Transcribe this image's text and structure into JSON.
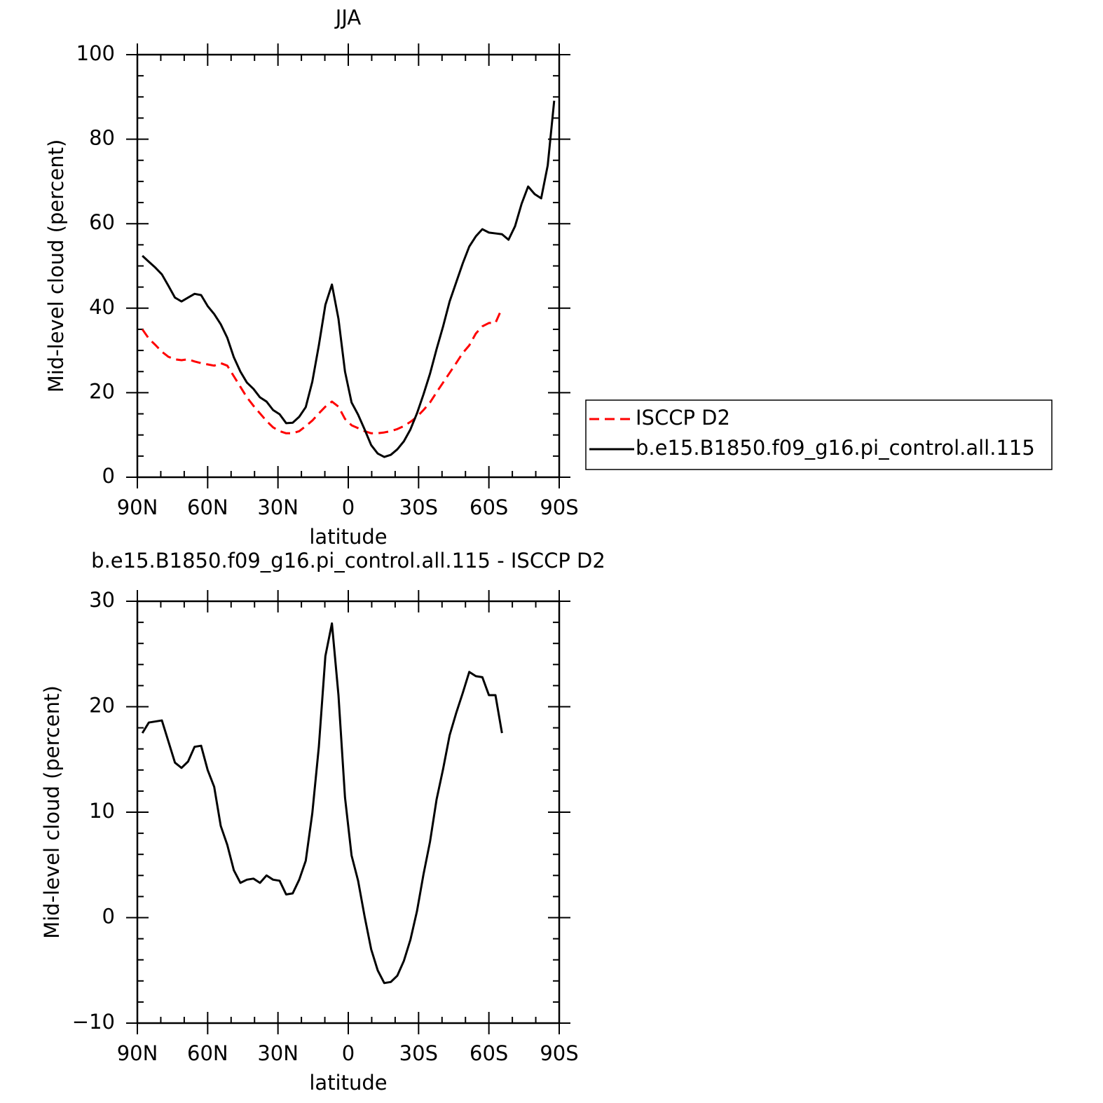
{
  "chart_data": [
    {
      "type": "line",
      "title": "JJA",
      "x_label": "latitude",
      "y_label": "Mid-level cloud (percent)",
      "x": [
        87.86,
        85.1,
        82.31,
        79.53,
        76.74,
        73.95,
        71.16,
        68.37,
        65.58,
        62.79,
        60.0,
        57.21,
        54.42,
        51.63,
        48.84,
        46.04,
        43.25,
        40.46,
        37.67,
        34.88,
        32.09,
        29.3,
        26.51,
        23.72,
        20.93,
        18.14,
        15.35,
        12.56,
        9.77,
        6.98,
        4.19,
        1.4,
        -1.4,
        -4.19,
        -6.98,
        -9.77,
        -12.56,
        -15.35,
        -18.14,
        -20.93,
        -23.72,
        -26.51,
        -29.3,
        -32.09,
        -34.88,
        -37.67,
        -40.46,
        -43.25,
        -46.04,
        -48.84,
        -51.63,
        -54.42,
        -57.21,
        -60.0,
        -62.79,
        -65.58,
        -68.37,
        -71.16,
        -73.95,
        -76.74,
        -79.53,
        -82.31,
        -85.1,
        -87.86
      ],
      "xlim": [
        90,
        -90
      ],
      "xticks": [
        {
          "value": 90,
          "label": "90N"
        },
        {
          "value": 60,
          "label": "60N"
        },
        {
          "value": 30,
          "label": "30N"
        },
        0,
        {
          "value": -30,
          "label": "30S"
        },
        {
          "value": -60,
          "label": "60S"
        },
        {
          "value": -90,
          "label": "90S"
        }
      ],
      "x_minor_ticks": [
        80,
        70,
        50,
        40,
        20,
        10,
        -10,
        -20,
        -40,
        -50,
        -70,
        -80
      ],
      "ylim": [
        0,
        100
      ],
      "yticks": [
        0,
        20,
        40,
        60,
        80,
        100
      ],
      "y_minor_ticks": [
        5,
        10,
        15,
        25,
        30,
        35,
        45,
        50,
        55,
        65,
        70,
        75,
        85,
        90,
        95
      ],
      "legend": "outside-right",
      "series": [
        {
          "name": "ISCCP D2",
          "color": "#ff0000",
          "dashed": true,
          "values": [
            35.0,
            32.8,
            31.3,
            29.7,
            28.5,
            27.9,
            27.7,
            27.9,
            27.4,
            27.0,
            26.7,
            26.4,
            27.0,
            26.4,
            23.9,
            21.4,
            18.9,
            16.9,
            15.1,
            13.3,
            11.8,
            10.9,
            10.4,
            10.4,
            10.9,
            12.1,
            13.4,
            15.1,
            16.7,
            17.9,
            16.7,
            13.8,
            12.3,
            11.6,
            10.9,
            10.4,
            10.4,
            10.6,
            10.9,
            11.4,
            12.1,
            13.1,
            14.3,
            15.9,
            17.7,
            20.1,
            22.4,
            24.7,
            27.0,
            29.4,
            31.2,
            34.0,
            35.7,
            36.5,
            36.5,
            40.0,
            null,
            null,
            null,
            null,
            null,
            null,
            null,
            null
          ]
        },
        {
          "name": "b.e15.B1850.f09_g16.pi_control.all.115",
          "color": "#000000",
          "dashed": false,
          "values": [
            52.4,
            51.0,
            49.6,
            48.0,
            45.3,
            42.5,
            41.6,
            42.5,
            43.4,
            43.1,
            40.5,
            38.6,
            36.2,
            33.0,
            28.4,
            25.0,
            22.4,
            20.9,
            18.9,
            17.9,
            15.9,
            14.9,
            12.8,
            12.9,
            14.3,
            16.6,
            22.6,
            31.2,
            40.8,
            45.6,
            37.5,
            25.0,
            17.7,
            14.8,
            11.3,
            7.6,
            5.6,
            4.8,
            5.3,
            6.6,
            8.5,
            11.3,
            15.1,
            19.6,
            24.5,
            30.3,
            35.7,
            41.6,
            46.1,
            50.6,
            54.6,
            57.0,
            58.7,
            57.9,
            57.7,
            57.5,
            56.2,
            59.4,
            64.7,
            68.8,
            67.0,
            66.0,
            73.8,
            89.1
          ]
        }
      ]
    },
    {
      "type": "line",
      "title": "b.e15.B1850.f09_g16.pi_control.all.115 - ISCCP D2",
      "x_label": "latitude",
      "y_label": "Mid-level cloud (percent)",
      "x": [
        87.86,
        85.1,
        82.31,
        79.53,
        76.74,
        73.95,
        71.16,
        68.37,
        65.58,
        62.79,
        60.0,
        57.21,
        54.42,
        51.63,
        48.84,
        46.04,
        43.25,
        40.46,
        37.67,
        34.88,
        32.09,
        29.3,
        26.51,
        23.72,
        20.93,
        18.14,
        15.35,
        12.56,
        9.77,
        6.98,
        4.19,
        1.4,
        -1.4,
        -4.19,
        -6.98,
        -9.77,
        -12.56,
        -15.35,
        -18.14,
        -20.93,
        -23.72,
        -26.51,
        -29.3,
        -32.09,
        -34.88,
        -37.67,
        -40.46,
        -43.25,
        -46.04,
        -48.84,
        -51.63,
        -54.42,
        -57.21,
        -60.0,
        -62.79,
        -65.58,
        -68.37,
        -71.16,
        -73.95,
        -76.74,
        -79.53,
        -82.31,
        -85.1,
        -87.86
      ],
      "xlim": [
        90,
        -90
      ],
      "xticks": [
        {
          "value": 90,
          "label": "90N"
        },
        {
          "value": 60,
          "label": "60N"
        },
        {
          "value": 30,
          "label": "30N"
        },
        0,
        {
          "value": -30,
          "label": "30S"
        },
        {
          "value": -60,
          "label": "60S"
        },
        {
          "value": -90,
          "label": "90S"
        }
      ],
      "x_minor_ticks": [
        80,
        70,
        50,
        40,
        20,
        10,
        -10,
        -20,
        -40,
        -50,
        -70,
        -80
      ],
      "ylim": [
        -10,
        30
      ],
      "yticks": [
        {
          "value": -10,
          "label": "−10"
        },
        0,
        10,
        20,
        30
      ],
      "y_minor_ticks": [
        -8,
        -6,
        -4,
        -2,
        2,
        4,
        6,
        8,
        12,
        14,
        16,
        18,
        22,
        24,
        26,
        28
      ],
      "series": [
        {
          "color": "#000000",
          "dashed": false,
          "values": [
            17.5,
            18.5,
            18.6,
            18.7,
            16.7,
            14.7,
            14.2,
            14.8,
            16.2,
            16.3,
            14.0,
            12.4,
            8.7,
            6.9,
            4.5,
            3.3,
            3.6,
            3.7,
            3.3,
            4.0,
            3.6,
            3.5,
            2.2,
            2.3,
            3.6,
            5.4,
            9.9,
            16.2,
            24.8,
            27.9,
            21.1,
            11.4,
            5.9,
            3.5,
            0.1,
            -3.0,
            -5.0,
            -6.2,
            -6.1,
            -5.5,
            -4.1,
            -2.1,
            0.6,
            4.1,
            7.2,
            11.2,
            14.1,
            17.3,
            19.4,
            21.3,
            23.3,
            22.9,
            22.8,
            21.1,
            21.1,
            17.5,
            null,
            null,
            null,
            null,
            null,
            null,
            null,
            null
          ]
        }
      ]
    }
  ]
}
